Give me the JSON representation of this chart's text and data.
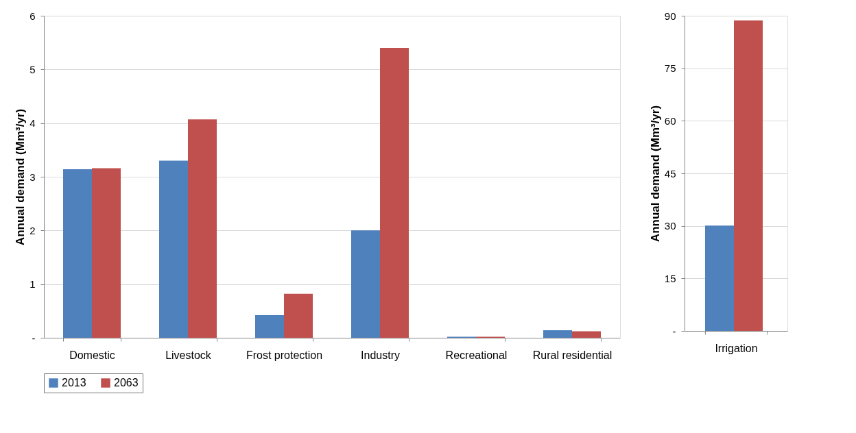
{
  "chart_data": [
    {
      "type": "bar",
      "ylabel": "Annual demand (Mm³/yr)",
      "categories": [
        "Domestic",
        "Livestock",
        "Frost protection",
        "Industry",
        "Recreational",
        "Rural residential"
      ],
      "series": [
        {
          "name": "2013",
          "color": "#4f81bd",
          "values": [
            3.14,
            3.3,
            0.42,
            2.0,
            0.02,
            0.14
          ]
        },
        {
          "name": "2063",
          "color": "#c0504d",
          "values": [
            3.16,
            4.07,
            0.82,
            5.4,
            0.02,
            0.12
          ]
        }
      ],
      "ylim": [
        0,
        6
      ],
      "yticks": [
        {
          "value": 0,
          "label": "-"
        },
        1,
        2,
        3,
        4,
        5,
        6
      ],
      "grid": "y",
      "legend": "bottom"
    },
    {
      "type": "bar",
      "ylabel": "Annual demand (Mm³/yr)",
      "categories": [
        "Irrigation"
      ],
      "series": [
        {
          "name": "2013",
          "color": "#4f81bd",
          "values": [
            30.1
          ]
        },
        {
          "name": "2063",
          "color": "#c0504d",
          "values": [
            88.7
          ]
        }
      ],
      "ylim": [
        0,
        90
      ],
      "yticks": [
        {
          "value": 0,
          "label": "-"
        },
        15,
        30,
        45,
        60,
        75,
        90
      ],
      "grid": "y",
      "legend": "bottom"
    }
  ]
}
